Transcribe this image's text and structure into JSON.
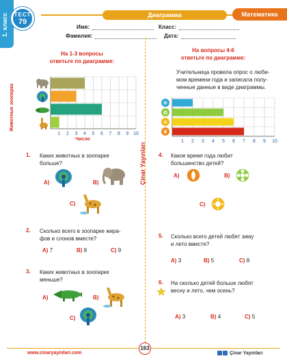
{
  "header": {
    "grade": "1. класс",
    "test_label": "ТЕСТ",
    "test_number": "79",
    "title": "Диаграмма",
    "subject": "Математика",
    "name_label": "Имя:",
    "surname_label": "Фамилия:",
    "class_label": "Класс:",
    "date_label": "Дата:"
  },
  "left": {
    "heading_line1": "На 1-3 вопросы",
    "heading_line2": "ответьте по диаграмме:",
    "chart_ylabel": "Животные зоопарка",
    "chart_xlabel": "Число",
    "q1": {
      "num": "1.",
      "text_line1": "Каких животных в зоопарке",
      "text_line2": "больше?",
      "opt_a": "A)",
      "opt_b": "B)",
      "opt_c": "C)"
    },
    "q2": {
      "num": "2.",
      "text_line1": "Сколько всего в зоопарке жира-",
      "text_line2": "фов и слонов вместе?",
      "opt_a": "A)",
      "val_a": "7",
      "opt_b": "B)",
      "val_b": "8",
      "opt_c": "C)",
      "val_c": "9"
    },
    "q3": {
      "num": "3.",
      "text_line1": "Каких животных в зоопарке",
      "text_line2": "меньше?",
      "opt_a": "A)",
      "opt_b": "B)",
      "opt_c": "C)"
    }
  },
  "right": {
    "heading_line1": "На вопросы 4-6",
    "heading_line2": "ответьте по диаграмме:",
    "intro_line1": "Учительница провела опрос о люби-",
    "intro_line2": "мом времени года и записала полу-",
    "intro_line3": "ченные данные в виде диаграммы.",
    "q4": {
      "num": "4.",
      "text_line1": "Какое время года любит",
      "text_line2": "большинство детей?",
      "opt_a": "A)",
      "opt_b": "B)",
      "opt_c": "C)"
    },
    "q5": {
      "num": "5.",
      "text_line1": "Сколько всего детей любят зиму",
      "text_line2": "и лето вместе?",
      "opt_a": "A)",
      "val_a": "3",
      "opt_b": "B)",
      "val_b": "5",
      "opt_c": "C)",
      "val_c": "8"
    },
    "q6": {
      "num": "6.",
      "text_line1": "На сколько детей больше любят",
      "text_line2": "весну и лето, чем осень?",
      "opt_a": "A)",
      "val_a": "3",
      "opt_b": "B)",
      "val_b": "4",
      "opt_c": "C)",
      "val_c": "5"
    }
  },
  "brand_vertical": "Çinar Yayınları",
  "footer": {
    "website": "www.cinaryayinlari.com",
    "page": "163",
    "brand": "Çinar Yayınları"
  },
  "chart_data": [
    {
      "type": "bar",
      "orientation": "horizontal",
      "categories": [
        "elephant",
        "peacock",
        "crocodile",
        "giraffe"
      ],
      "values": [
        4,
        3,
        6,
        1
      ],
      "colors": [
        "#a8a55a",
        "#f2a12b",
        "#24a37e",
        "#9dcf3f"
      ],
      "x_ticks": [
        "1",
        "2",
        "3",
        "4",
        "5",
        "6",
        "7",
        "8",
        "9",
        "10"
      ],
      "xlim": [
        0,
        10
      ],
      "xlabel": "Число",
      "ylabel": "Животные зоопарка",
      "grid": true
    },
    {
      "type": "bar",
      "orientation": "horizontal",
      "categories": [
        "winter",
        "spring",
        "summer",
        "autumn"
      ],
      "values": [
        2,
        5,
        6,
        7
      ],
      "colors": [
        "#33a9d6",
        "#8ccc3e",
        "#f3d21a",
        "#d6281a"
      ],
      "x_ticks": [
        "1",
        "2",
        "3",
        "4",
        "5",
        "6",
        "7",
        "8",
        "9",
        "10"
      ],
      "xlim": [
        0,
        10
      ],
      "grid": true
    }
  ]
}
